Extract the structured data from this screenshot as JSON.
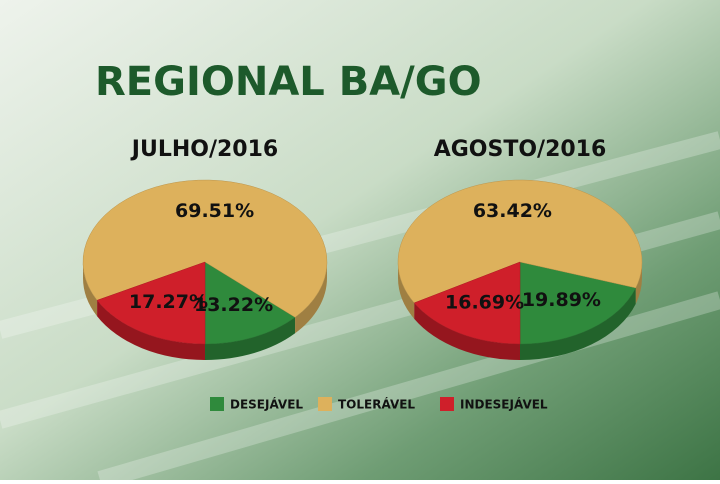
{
  "title": "REGIONAL BA/GO",
  "chart_data": [
    {
      "type": "pie",
      "title": "JULHO/2016",
      "categories": [
        "DESEJÁVEL",
        "TOLERÁVEL",
        "INDESEJÁVEL"
      ],
      "values": [
        13.22,
        69.51,
        17.27
      ],
      "value_labels": [
        "13.22%",
        "69.51%",
        "17.27%"
      ],
      "colors": [
        "#2f8a3c",
        "#ddb15c",
        "#cf1f2a"
      ]
    },
    {
      "type": "pie",
      "title": "AGOSTO/2016",
      "categories": [
        "DESEJÁVEL",
        "TOLERÁVEL",
        "INDESEJÁVEL"
      ],
      "values": [
        19.89,
        63.42,
        16.69
      ],
      "value_labels": [
        "19.89%",
        "63.42%",
        "16.69%"
      ],
      "colors": [
        "#2f8a3c",
        "#ddb15c",
        "#cf1f2a"
      ]
    }
  ]
}
